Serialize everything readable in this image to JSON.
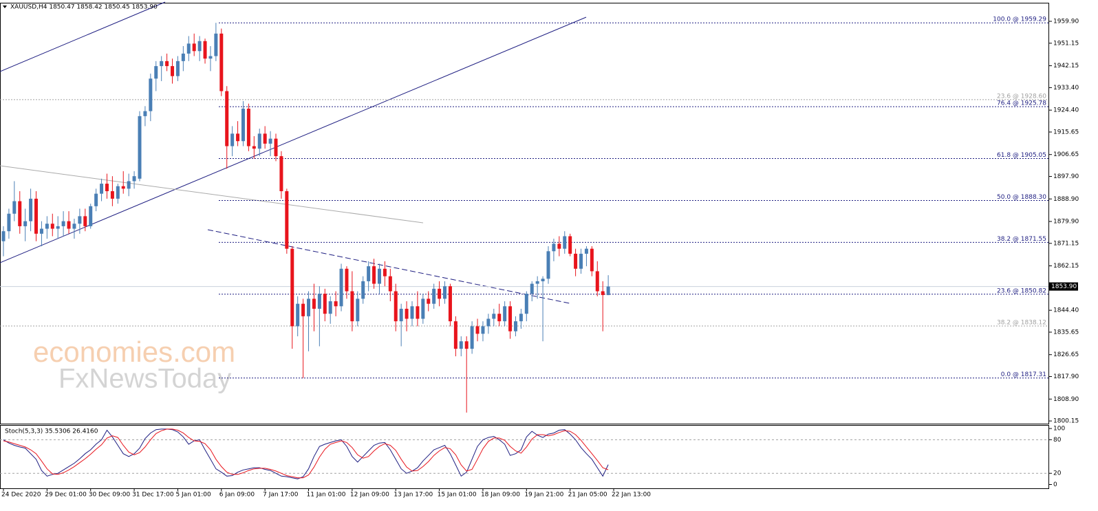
{
  "chart_data": {
    "type": "candlestick",
    "header": "XAUUSD,H4  1850.47 1858.42 1850.45 1853.90",
    "watermark": [
      "economies.com",
      "FxNewsToday"
    ],
    "bull_color": "#4a7fb5",
    "bear_color": "#e8141c",
    "ylim": [
      1798.8,
      1967.05
    ],
    "yticks": [
      {
        "value": 1959.9,
        "label": "1959.90"
      },
      1951.15,
      1942.15,
      {
        "value": 1933.4,
        "label": "1933.40"
      },
      {
        "value": 1924.4,
        "label": "1924.40"
      },
      1915.65,
      1906.65,
      {
        "value": 1897.9,
        "label": "1897.90"
      },
      {
        "value": 1888.9,
        "label": "1888.90"
      },
      {
        "value": 1879.9,
        "label": "1879.90"
      },
      1871.15,
      1862.15,
      {
        "value": 1844.4,
        "label": "1844.40"
      },
      1835.65,
      1826.65,
      {
        "value": 1817.9,
        "label": "1817.90"
      },
      {
        "value": 1808.9,
        "label": "1808.90"
      },
      1800.15
    ],
    "current_price": {
      "value": 1853.9,
      "label": "1853.90"
    },
    "fib_levels": [
      {
        "label": "100.0 @ 1959.29",
        "value": 1959.29,
        "color": "#1c1c80"
      },
      {
        "label": "23.6 @ 1928.60",
        "value": 1928.6,
        "color": "#a0a0a0"
      },
      {
        "label": "76.4 @ 1925.78",
        "value": 1925.78,
        "color": "#1c1c80"
      },
      {
        "label": "61.8 @ 1905.05",
        "value": 1905.05,
        "color": "#1c1c80"
      },
      {
        "label": "50.0 @ 1888.30",
        "value": 1888.3,
        "color": "#1c1c80"
      },
      {
        "label": "38.2 @ 1871.55",
        "value": 1871.55,
        "color": "#1c1c80"
      },
      {
        "label": "23.6 @ 1850.82",
        "value": 1850.82,
        "color": "#1c1c80"
      },
      {
        "label": "38.2 @ 1838.12",
        "value": 1838.12,
        "color": "#a0a0a0"
      },
      {
        "label": "0.0 @ 1817.31",
        "value": 1817.31,
        "color": "#1c1c80"
      }
    ],
    "x_labels": [
      "24 Dec 2020",
      "29 Dec 01:00",
      "30 Dec 09:00",
      "31 Dec 17:00",
      "5 Jan 01:00",
      "6 Jan 09:00",
      "7 Jan 17:00",
      "11 Jan 01:00",
      "12 Jan 09:00",
      "13 Jan 17:00",
      "15 Jan 01:00",
      "18 Jan 09:00",
      "19 Jan 21:00",
      "21 Jan 05:00",
      "22 Jan 13:00"
    ],
    "candles": [
      [
        1872,
        1878,
        1866,
        1876
      ],
      [
        1876,
        1885,
        1873,
        1883
      ],
      [
        1883,
        1896,
        1880,
        1888
      ],
      [
        1888,
        1892,
        1875,
        1878
      ],
      [
        1878,
        1885,
        1872,
        1880
      ],
      [
        1880,
        1893,
        1876,
        1889
      ],
      [
        1889,
        1892,
        1872,
        1875
      ],
      [
        1875,
        1880,
        1870,
        1877
      ],
      [
        1877,
        1882,
        1873,
        1879
      ],
      [
        1879,
        1883,
        1874,
        1877
      ],
      [
        1877,
        1882,
        1873,
        1878
      ],
      [
        1878,
        1884,
        1874,
        1880
      ],
      [
        1880,
        1884,
        1875,
        1877
      ],
      [
        1877,
        1881,
        1873,
        1879
      ],
      [
        1879,
        1885,
        1875,
        1882
      ],
      [
        1882,
        1885,
        1876,
        1878
      ],
      [
        1878,
        1887,
        1877,
        1886
      ],
      [
        1886,
        1893,
        1884,
        1891
      ],
      [
        1891,
        1897,
        1888,
        1895
      ],
      [
        1895,
        1899,
        1889,
        1892
      ],
      [
        1892,
        1898,
        1886,
        1889
      ],
      [
        1889,
        1895,
        1887,
        1894
      ],
      [
        1894,
        1900,
        1891,
        1893
      ],
      [
        1893,
        1899,
        1890,
        1896
      ],
      [
        1896,
        1900,
        1893,
        1898
      ],
      [
        1897,
        1924,
        1896,
        1922
      ],
      [
        1922,
        1926,
        1918,
        1924
      ],
      [
        1924,
        1939,
        1920,
        1937
      ],
      [
        1937,
        1944,
        1932,
        1942
      ],
      [
        1942,
        1946,
        1936,
        1944
      ],
      [
        1944,
        1947,
        1940,
        1942
      ],
      [
        1942,
        1945,
        1935,
        1938
      ],
      [
        1938,
        1946,
        1936,
        1944
      ],
      [
        1944,
        1950,
        1940,
        1947
      ],
      [
        1947,
        1954,
        1944,
        1951
      ],
      [
        1951,
        1955,
        1946,
        1948
      ],
      [
        1948,
        1954,
        1944,
        1952
      ],
      [
        1952,
        1953,
        1943,
        1945
      ],
      [
        1945,
        1950,
        1940,
        1946
      ],
      [
        1946,
        1959.3,
        1944,
        1955
      ],
      [
        1955,
        1957,
        1930,
        1932
      ],
      [
        1932,
        1934,
        1901,
        1910
      ],
      [
        1910,
        1918,
        1906,
        1915
      ],
      [
        1915,
        1920,
        1910,
        1912
      ],
      [
        1912,
        1928,
        1910,
        1925
      ],
      [
        1925,
        1927,
        1908,
        1910
      ],
      [
        1910,
        1914,
        1905,
        1909
      ],
      [
        1909,
        1917,
        1906,
        1915
      ],
      [
        1915,
        1918,
        1909,
        1911
      ],
      [
        1911,
        1916,
        1906,
        1913
      ],
      [
        1913,
        1915,
        1904,
        1906
      ],
      [
        1906,
        1908,
        1889,
        1892
      ],
      [
        1892,
        1893,
        1867,
        1869
      ],
      [
        1869,
        1870,
        1829,
        1838
      ],
      [
        1838,
        1850,
        1834,
        1847
      ],
      [
        1847,
        1849,
        1817.3,
        1842
      ],
      [
        1842,
        1852,
        1828,
        1849
      ],
      [
        1849,
        1855,
        1836,
        1845
      ],
      [
        1845,
        1854,
        1830,
        1851
      ],
      [
        1851,
        1853,
        1840,
        1843
      ],
      [
        1843,
        1850,
        1839,
        1848
      ],
      [
        1848,
        1852,
        1842,
        1846
      ],
      [
        1846,
        1863,
        1844,
        1861
      ],
      [
        1861,
        1862,
        1849,
        1852
      ],
      [
        1852,
        1860,
        1836,
        1840
      ],
      [
        1840,
        1852,
        1838,
        1849
      ],
      [
        1849,
        1858,
        1847,
        1856
      ],
      [
        1856,
        1864,
        1852,
        1862
      ],
      [
        1862,
        1865,
        1853,
        1855
      ],
      [
        1855,
        1863,
        1851,
        1861
      ],
      [
        1861,
        1864,
        1854,
        1858
      ],
      [
        1858,
        1861,
        1848,
        1852
      ],
      [
        1852,
        1855,
        1836,
        1840
      ],
      [
        1840,
        1847,
        1830,
        1845
      ],
      [
        1845,
        1848,
        1836,
        1841
      ],
      [
        1841,
        1848,
        1838,
        1846
      ],
      [
        1846,
        1852,
        1838,
        1841
      ],
      [
        1841,
        1851,
        1839,
        1849
      ],
      [
        1849,
        1852,
        1844,
        1847
      ],
      [
        1847,
        1855,
        1845,
        1853
      ],
      [
        1853,
        1856,
        1846,
        1849
      ],
      [
        1849,
        1856,
        1847,
        1854
      ],
      [
        1854,
        1855,
        1838,
        1840
      ],
      [
        1840,
        1842,
        1826,
        1829
      ],
      [
        1829,
        1834,
        1826,
        1832
      ],
      [
        1832,
        1834,
        1803.5,
        1829
      ],
      [
        1829,
        1840,
        1827,
        1838
      ],
      [
        1838,
        1841,
        1832,
        1835
      ],
      [
        1835,
        1840,
        1832,
        1838
      ],
      [
        1838,
        1843,
        1835,
        1841
      ],
      [
        1841,
        1845,
        1838,
        1843
      ],
      [
        1843,
        1847,
        1838,
        1840
      ],
      [
        1840,
        1848,
        1838,
        1846
      ],
      [
        1846,
        1848,
        1833,
        1836
      ],
      [
        1836,
        1842,
        1834,
        1840
      ],
      [
        1840,
        1845,
        1837,
        1843
      ],
      [
        1843,
        1852,
        1840,
        1851
      ],
      [
        1851,
        1856,
        1848,
        1855
      ],
      [
        1855,
        1858,
        1849,
        1856
      ],
      [
        1856,
        1858,
        1832,
        1857
      ],
      [
        1857,
        1870,
        1855,
        1868
      ],
      [
        1868,
        1873,
        1864,
        1871
      ],
      [
        1871,
        1874,
        1866,
        1869
      ],
      [
        1869,
        1876,
        1867,
        1874
      ],
      [
        1874,
        1875,
        1866,
        1867
      ],
      [
        1867,
        1869,
        1858,
        1861
      ],
      [
        1861,
        1869,
        1859,
        1867
      ],
      [
        1867,
        1870,
        1862,
        1869
      ],
      [
        1869,
        1870,
        1858,
        1860
      ],
      [
        1860,
        1864,
        1850,
        1852
      ],
      [
        1852,
        1856,
        1836,
        1850.5
      ],
      [
        1850.47,
        1858.42,
        1850.45,
        1853.9
      ]
    ],
    "stochastic": {
      "title": "Stoch(5,3,3) 35.5306 26.4160",
      "ylim": [
        -8,
        105
      ],
      "yticks": [
        100,
        80,
        20,
        0
      ],
      "levels": [
        80,
        20
      ],
      "series": [
        {
          "color": "#1c1c80",
          "values": [
            80,
            74,
            70,
            67,
            65,
            55,
            45,
            25,
            15,
            18,
            20,
            26,
            32,
            38,
            46,
            55,
            62,
            72,
            80,
            97,
            85,
            70,
            55,
            50,
            55,
            65,
            82,
            92,
            98,
            99,
            99,
            98,
            94,
            85,
            72,
            78,
            80,
            62,
            45,
            28,
            22,
            15,
            16,
            22,
            26,
            28,
            30,
            30,
            27,
            25,
            20,
            15,
            14,
            12,
            10,
            14,
            28,
            50,
            68,
            72,
            75,
            78,
            80,
            68,
            50,
            40,
            50,
            60,
            70,
            74,
            75,
            62,
            45,
            28,
            20,
            24,
            30,
            42,
            52,
            62,
            66,
            70,
            55,
            35,
            15,
            22,
            45,
            68,
            80,
            84,
            86,
            80,
            72,
            52,
            55,
            62,
            85,
            95,
            88,
            84,
            90,
            92,
            97,
            98,
            90,
            80,
            66,
            55,
            45,
            30,
            15,
            35.5306
          ]
        },
        {
          "color": "#e8141c",
          "values": [
            78,
            76,
            73,
            70,
            67,
            62,
            55,
            42,
            28,
            19,
            18,
            21,
            26,
            32,
            39,
            46,
            54,
            63,
            71,
            83,
            87,
            84,
            70,
            58,
            53,
            57,
            67,
            80,
            91,
            96,
            99,
            99,
            97,
            92,
            84,
            78,
            77,
            73,
            62,
            45,
            32,
            22,
            18,
            18,
            21,
            25,
            28,
            29,
            29,
            27,
            24,
            20,
            16,
            14,
            12,
            12,
            17,
            31,
            49,
            63,
            72,
            75,
            78,
            75,
            66,
            53,
            47,
            50,
            60,
            68,
            73,
            70,
            61,
            45,
            31,
            24,
            25,
            32,
            41,
            52,
            60,
            66,
            64,
            53,
            35,
            24,
            27,
            45,
            64,
            77,
            83,
            83,
            79,
            68,
            60,
            56,
            67,
            81,
            89,
            89,
            87,
            89,
            93,
            96,
            95,
            89,
            79,
            67,
            55,
            43,
            30,
            26.416
          ]
        }
      ]
    }
  }
}
